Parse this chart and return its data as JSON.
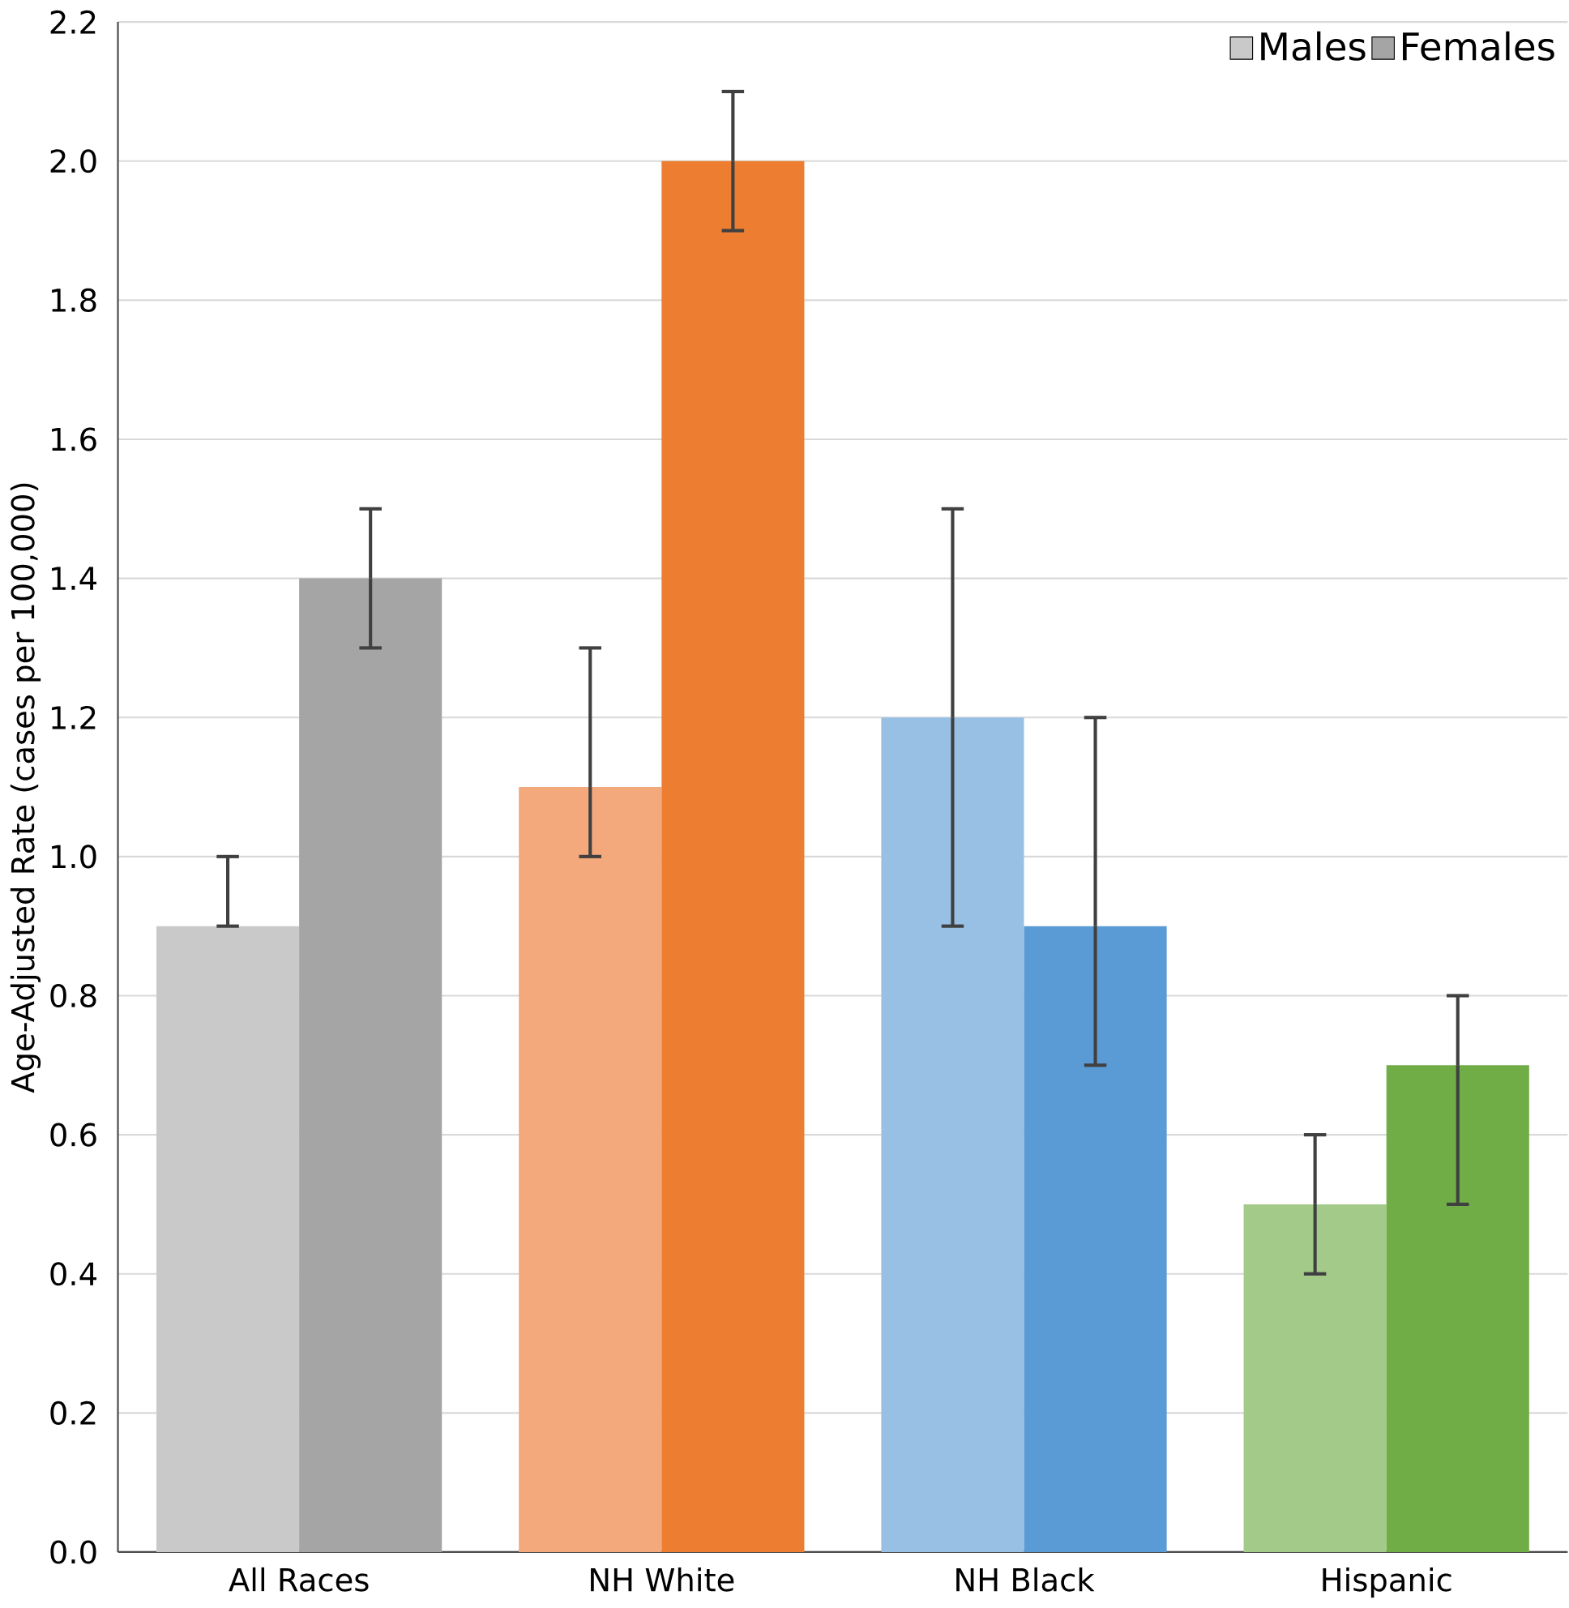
{
  "chart_data": {
    "type": "bar",
    "ylabel": "Age-Adjusted Rate (cases per 100,000)",
    "categories": [
      "All Races",
      "NH White",
      "NH Black",
      "Hispanic"
    ],
    "series": [
      {
        "name": "Males",
        "colors": [
          "#c9c9c9",
          "#f3a97c",
          "#98c0e5",
          "#a3ca88"
        ],
        "values": [
          0.9,
          1.1,
          1.2,
          0.5
        ],
        "errors": [
          [
            0.9,
            1.0
          ],
          [
            1.0,
            1.3
          ],
          0.3,
          0.1
        ]
      },
      {
        "name": "Females",
        "colors": [
          "#a5a5a5",
          "#ed7d31",
          "#5b9bd5",
          "#70ad47"
        ],
        "values": [
          1.4,
          2.0,
          0.9,
          0.7
        ],
        "errors": [
          0.1,
          0.1,
          [
            0.7,
            1.2
          ],
          [
            0.5,
            0.8
          ]
        ]
      }
    ],
    "ylim": [
      0,
      2.2
    ],
    "yticks": [
      {
        "value": 0,
        "label": "0.0"
      },
      {
        "value": 0.2,
        "label": "0.2"
      },
      {
        "value": 0.4,
        "label": "0.4"
      },
      {
        "value": 0.6,
        "label": "0.6"
      },
      {
        "value": 0.8,
        "label": "0.8"
      },
      {
        "value": 1.0,
        "label": "1.0"
      },
      {
        "value": 1.2,
        "label": "1.2"
      },
      {
        "value": 1.4,
        "label": "1.4"
      },
      {
        "value": 1.6,
        "label": "1.6"
      },
      {
        "value": 1.8,
        "label": "1.8"
      },
      {
        "value": 2.0,
        "label": "2.0"
      },
      {
        "value": 2.2,
        "label": "2.2"
      }
    ],
    "grid": "y",
    "legend": "top right"
  }
}
